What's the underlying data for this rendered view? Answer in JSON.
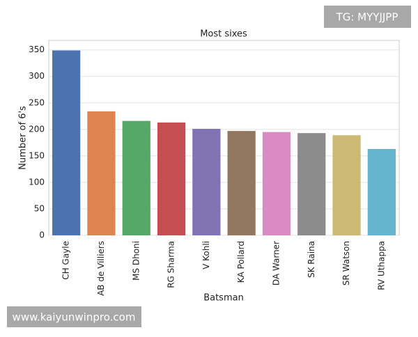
{
  "chart_data": {
    "type": "bar",
    "title": "Most sixes",
    "xlabel": "Batsman",
    "ylabel": "Number of 6's",
    "categories": [
      "CH Gayle",
      "AB de Villiers",
      "MS Dhoni",
      "RG Sharma",
      "V Kohli",
      "KA Pollard",
      "DA Warner",
      "SK Raina",
      "SR Watson",
      "RV Uthappa"
    ],
    "values": [
      349,
      234,
      216,
      213,
      201,
      197,
      195,
      193,
      189,
      163
    ],
    "colors": [
      "#4c72b0",
      "#dd8452",
      "#55a868",
      "#c44e52",
      "#8172b3",
      "#937860",
      "#da8bc3",
      "#8c8c8c",
      "#ccb974",
      "#64b5cd"
    ],
    "ylim": [
      0,
      368
    ],
    "yticks": [
      0,
      50,
      100,
      150,
      200,
      250,
      300,
      350
    ],
    "grid": true
  },
  "watermarks": [
    "TG: MYYJJPP",
    "www.kaiyunwinpro.com"
  ]
}
